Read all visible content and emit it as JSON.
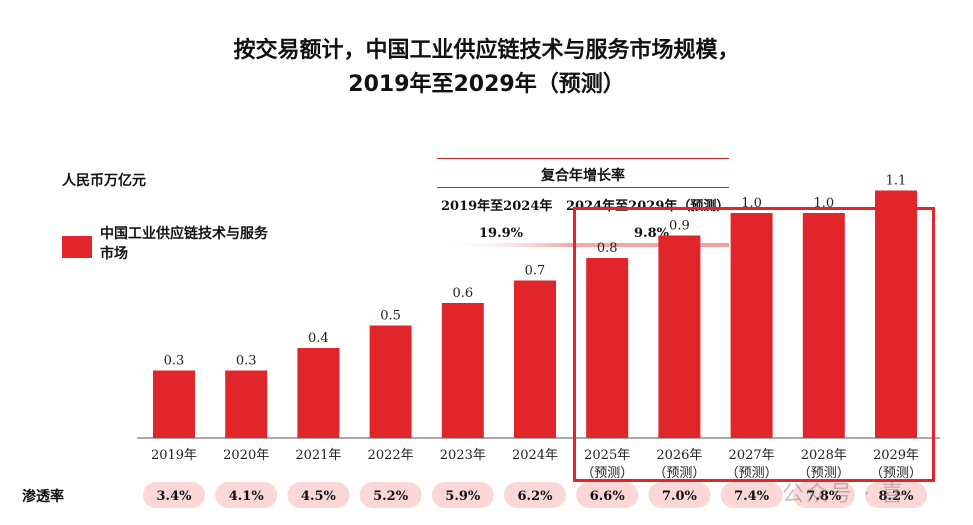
{
  "title_line1": "按交易额计，中国工业供应链技术与服务市场规模，",
  "title_line2": "2019年至2029年（预测）",
  "unit_label": "人民币万亿元",
  "legend": {
    "label": "中国工业供应链技术与服务市场",
    "color": "#e0262a"
  },
  "cagr": {
    "title": "复合年增长率",
    "periods": [
      {
        "label": "2019年至2024年",
        "value": "19.9%"
      },
      {
        "label": "2024年至2029年（预测）",
        "value": "9.8%"
      }
    ]
  },
  "penetration": {
    "label": "渗透率",
    "values": [
      "3.4%",
      "4.1%",
      "4.5%",
      "5.2%",
      "5.9%",
      "6.2%",
      "6.6%",
      "7.0%",
      "7.4%",
      "7.8%",
      "8.2%"
    ]
  },
  "watermark": "公众号 · 喜",
  "colors": {
    "bar": "#e0262a",
    "pill": "#fbd7d7",
    "cagr_line": "#c9272c",
    "cagr_shade": "#f2a0a2",
    "highlight": "#e0262a"
  },
  "chart_data": {
    "type": "bar",
    "title": "按交易额计，中国工业供应链技术与服务市场规模，2019年至2029年（预测）",
    "ylabel": "人民币万亿元",
    "xlabel": "",
    "ylim": [
      0,
      1.2
    ],
    "categories": [
      "2019年",
      "2020年",
      "2021年",
      "2022年",
      "2023年",
      "2024年",
      "2025年",
      "2026年",
      "2027年",
      "2028年",
      "2029年"
    ],
    "category_notes": [
      "",
      "",
      "",
      "",
      "",
      "",
      "（预测）",
      "（预测）",
      "（预测）",
      "（预测）",
      "（预测）"
    ],
    "series": [
      {
        "name": "中国工业供应链技术与服务市场",
        "values": [
          0.3,
          0.3,
          0.4,
          0.5,
          0.6,
          0.7,
          0.8,
          0.9,
          1.0,
          1.0,
          1.1
        ]
      }
    ],
    "value_labels": [
      "0.3",
      "0.3",
      "0.4",
      "0.5",
      "0.6",
      "0.7",
      "0.8",
      "0.9",
      "1.0",
      "1.0",
      "1.1"
    ]
  }
}
